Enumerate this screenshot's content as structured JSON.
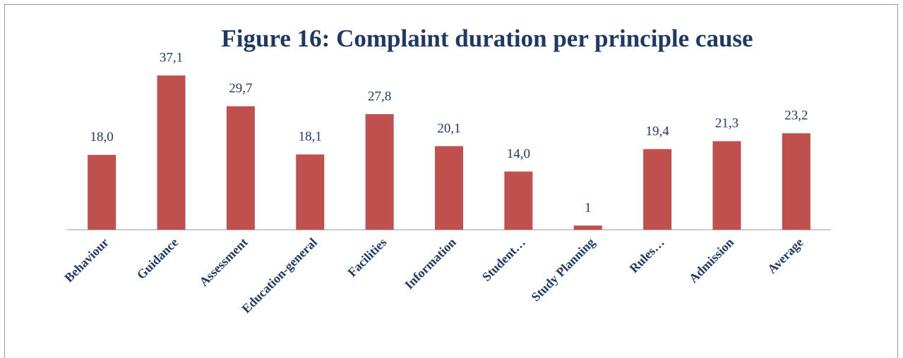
{
  "chart_data": {
    "type": "bar",
    "title": "Figure 16: Complaint duration per principle cause",
    "categories": [
      "Behaviour",
      "Guidance",
      "Assessment",
      "Education-general",
      "Facilities",
      "Information",
      "Student…",
      "Study Planning",
      "Rules…",
      "Admission",
      "Average"
    ],
    "values": [
      18.0,
      37.1,
      29.7,
      18.1,
      27.8,
      20.1,
      14.0,
      1,
      19.4,
      21.3,
      23.2
    ],
    "value_labels": [
      "18,0",
      "37,1",
      "29,7",
      "18,1",
      "27,8",
      "20,1",
      "14,0",
      "1",
      "19,4",
      "21,3",
      "23,2"
    ],
    "color": "#c0504d",
    "ylim": [
      0,
      40
    ]
  }
}
